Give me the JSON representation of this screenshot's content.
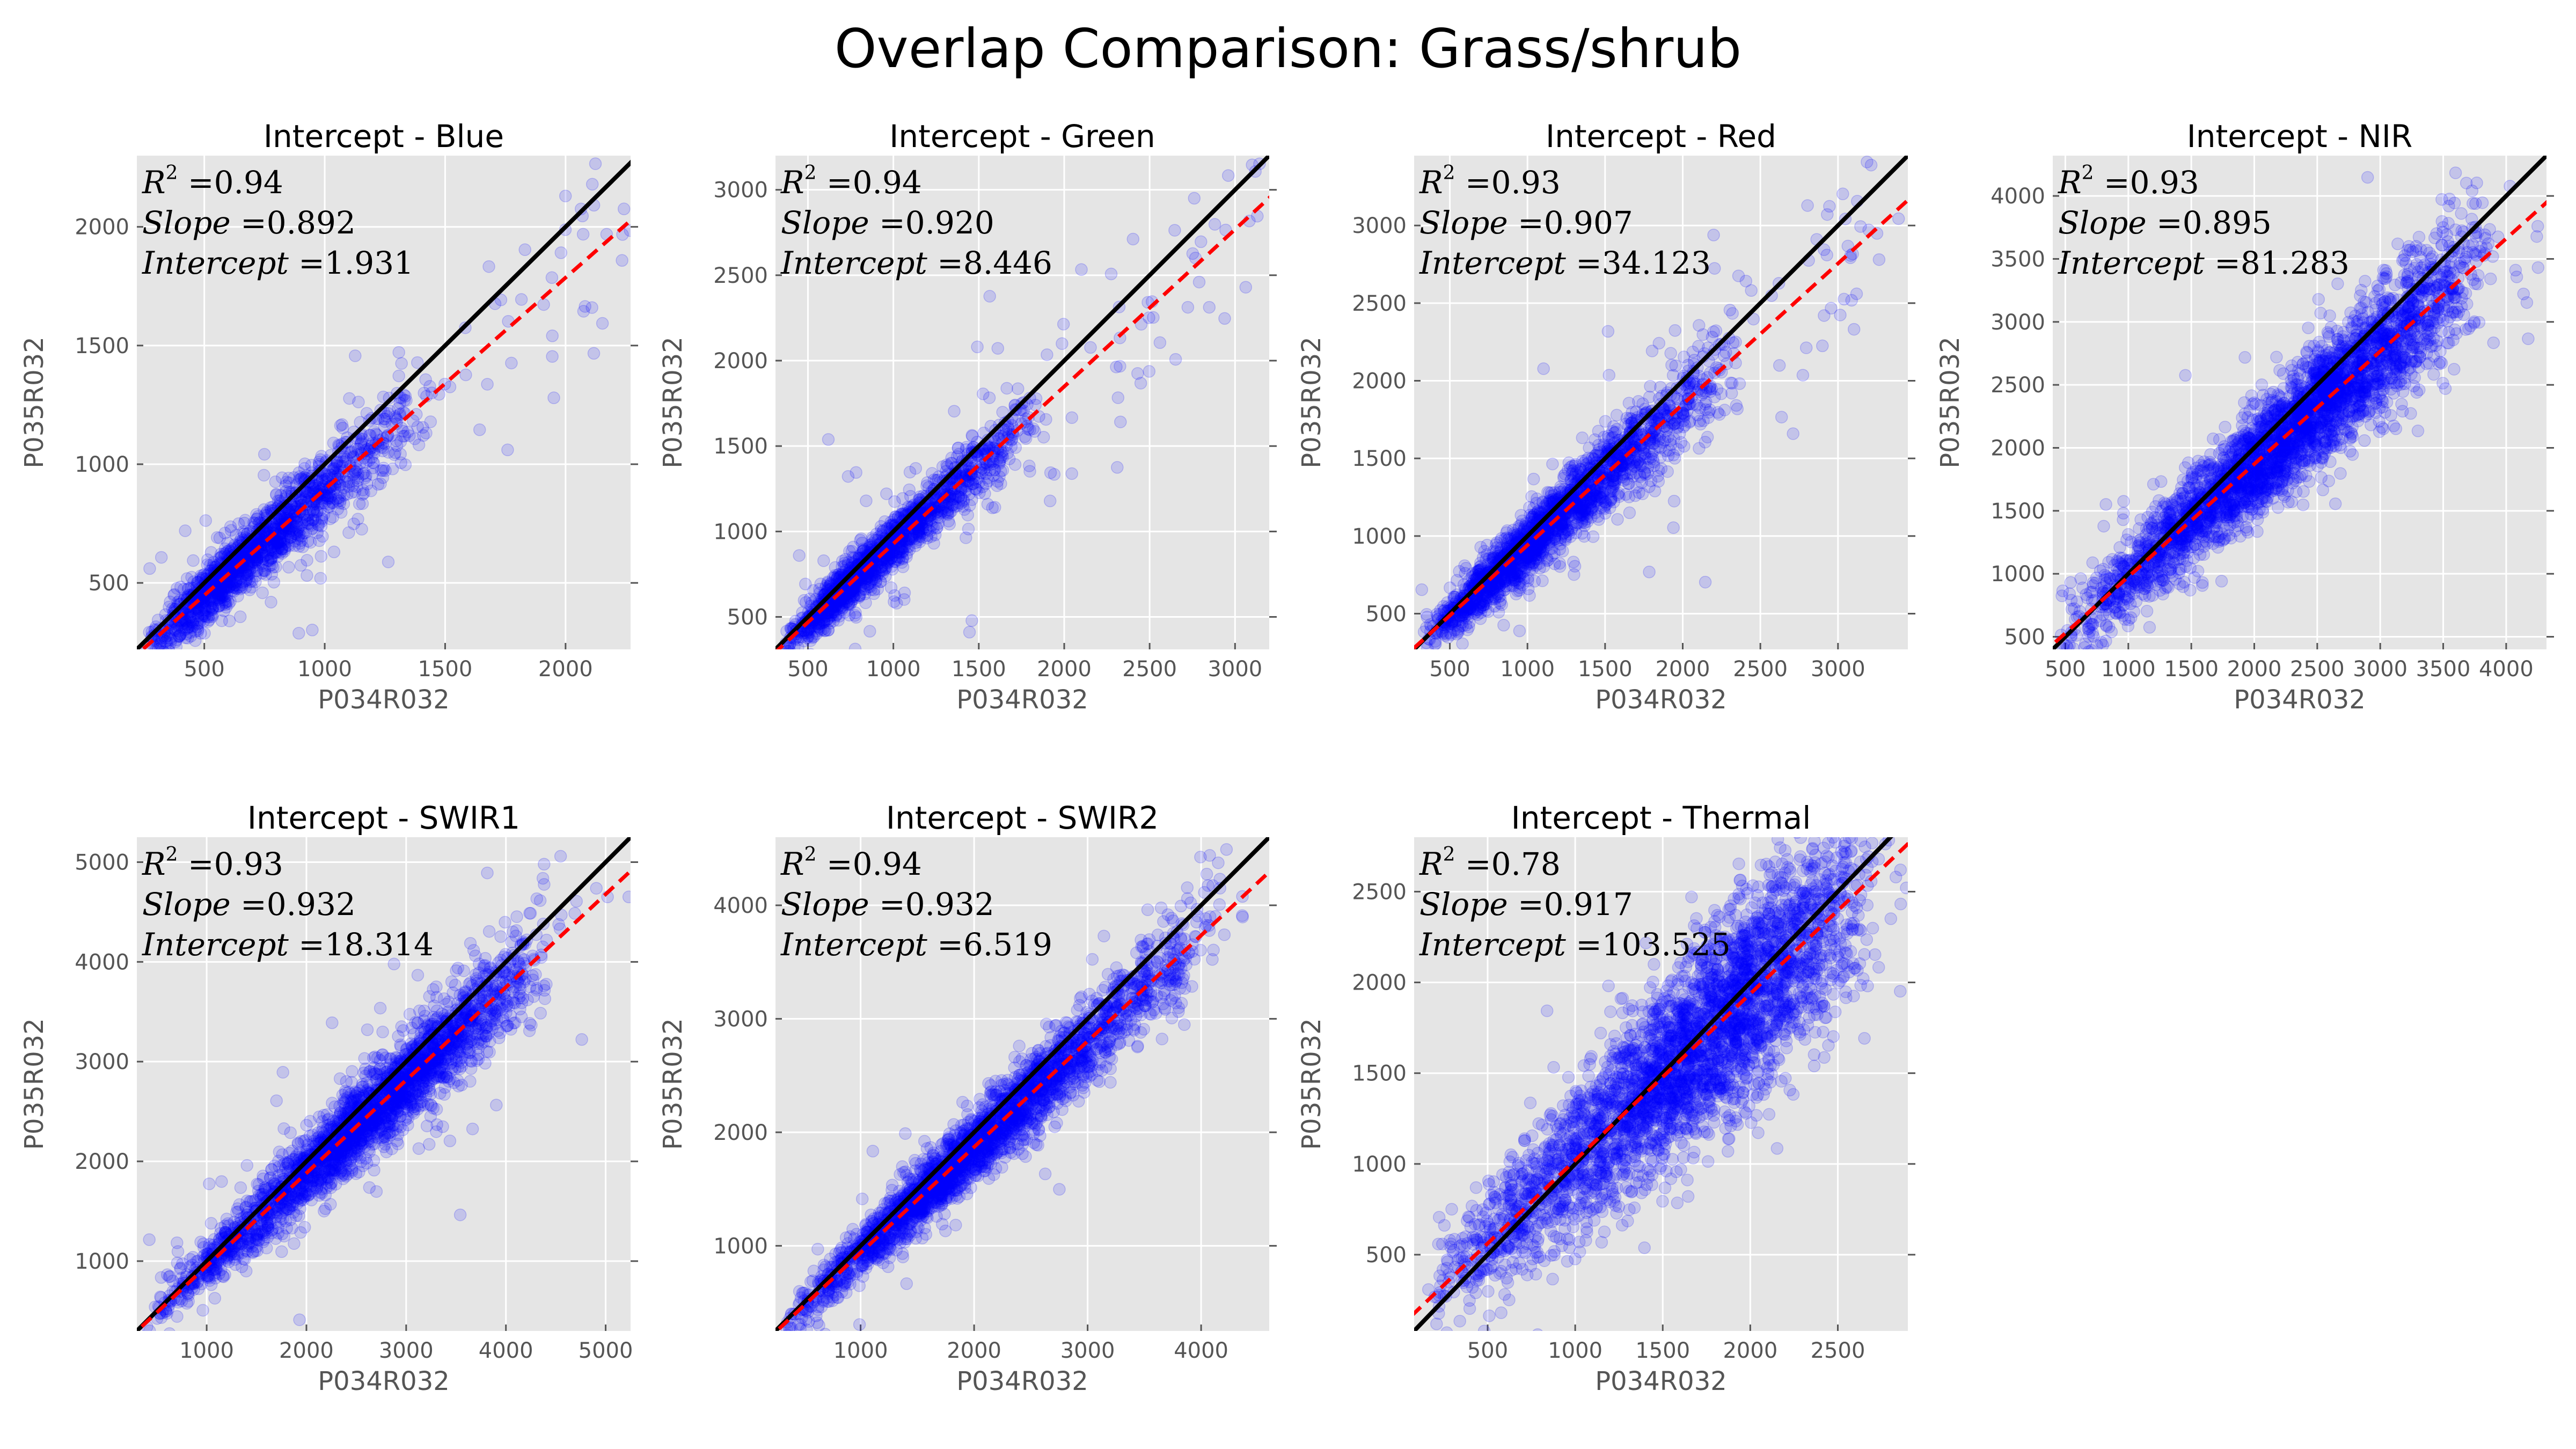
{
  "figure": {
    "title": "Overlap Comparison: Grass/shrub"
  },
  "colors": {
    "panel_bg": "#E5E5E5",
    "scatter": "#0000FF",
    "identity_line": "#000000",
    "fit_line": "#FF0000"
  },
  "chart_data": [
    {
      "type": "scatter",
      "title": "Intercept - Blue",
      "xlabel": "P034R032",
      "ylabel": "P035R032",
      "xlim": [
        220,
        2270
      ],
      "ylim": [
        220,
        2300
      ],
      "xticks": [
        500,
        1000,
        1500,
        2000
      ],
      "yticks": [
        500,
        1000,
        1500,
        2000
      ],
      "stats": {
        "r2": "0.94",
        "slope": "0.892",
        "intercept": "1.931"
      },
      "fit": {
        "slope": 0.892,
        "intercept": 1.931
      },
      "cloud": {
        "n": 1500,
        "xmin": 260,
        "xmode": 550,
        "xmax": 1450,
        "sd": 70,
        "outliers": 90
      },
      "grid": true,
      "identity_line": true,
      "fit_line_style": "dashed"
    },
    {
      "type": "scatter",
      "title": "Intercept - Green",
      "xlabel": "P034R032",
      "ylabel": "P035R032",
      "xlim": [
        310,
        3200
      ],
      "ylim": [
        310,
        3200
      ],
      "xticks": [
        500,
        1000,
        1500,
        2000,
        2500,
        3000
      ],
      "yticks": [
        500,
        1000,
        1500,
        2000,
        2500,
        3000
      ],
      "stats": {
        "r2": "0.94",
        "slope": "0.920",
        "intercept": "8.446"
      },
      "fit": {
        "slope": 0.92,
        "intercept": 8.446
      },
      "cloud": {
        "n": 1500,
        "xmin": 350,
        "xmode": 700,
        "xmax": 1900,
        "sd": 80,
        "outliers": 100
      },
      "grid": true,
      "identity_line": true,
      "fit_line_style": "dashed"
    },
    {
      "type": "scatter",
      "title": "Intercept - Red",
      "xlabel": "P034R032",
      "ylabel": "P035R032",
      "xlim": [
        270,
        3450
      ],
      "ylim": [
        270,
        3450
      ],
      "xticks": [
        500,
        1000,
        1500,
        2000,
        2500,
        3000
      ],
      "yticks": [
        500,
        1000,
        1500,
        2000,
        2500,
        3000
      ],
      "stats": {
        "r2": "0.93",
        "slope": "0.907",
        "intercept": "34.123"
      },
      "fit": {
        "slope": 0.907,
        "intercept": 34.123
      },
      "cloud": {
        "n": 2000,
        "xmin": 300,
        "xmode": 900,
        "xmax": 2400,
        "sd": 110,
        "outliers": 110
      },
      "grid": true,
      "identity_line": true,
      "fit_line_style": "dashed"
    },
    {
      "type": "scatter",
      "title": "Intercept - NIR",
      "xlabel": "P034R032",
      "ylabel": "P035R032",
      "xlim": [
        400,
        4320
      ],
      "ylim": [
        400,
        4320
      ],
      "xticks": [
        500,
        1000,
        1500,
        2000,
        2500,
        3000,
        3500,
        4000
      ],
      "yticks": [
        500,
        1000,
        1500,
        2000,
        2500,
        3000,
        3500,
        4000
      ],
      "stats": {
        "r2": "0.93",
        "slope": "0.895",
        "intercept": "81.283"
      },
      "fit": {
        "slope": 0.895,
        "intercept": 81.283
      },
      "cloud": {
        "n": 3200,
        "xmin": 450,
        "xmode": 2400,
        "xmax": 3900,
        "sd": 200,
        "outliers": 140
      },
      "grid": true,
      "identity_line": true,
      "fit_line_style": "dashed"
    },
    {
      "type": "scatter",
      "title": "Intercept - SWIR1",
      "xlabel": "P034R032",
      "ylabel": "P035R032",
      "xlim": [
        300,
        5250
      ],
      "ylim": [
        300,
        5250
      ],
      "xticks": [
        1000,
        2000,
        3000,
        4000,
        5000
      ],
      "yticks": [
        1000,
        2000,
        3000,
        4000,
        5000
      ],
      "stats": {
        "r2": "0.93",
        "slope": "0.932",
        "intercept": "18.314"
      },
      "fit": {
        "slope": 0.932,
        "intercept": 18.314
      },
      "cloud": {
        "n": 2600,
        "xmin": 350,
        "xmode": 2900,
        "xmax": 4500,
        "sd": 190,
        "outliers": 80
      },
      "grid": true,
      "identity_line": true,
      "fit_line_style": "dashed"
    },
    {
      "type": "scatter",
      "title": "Intercept - SWIR2",
      "xlabel": "P034R032",
      "ylabel": "P035R032",
      "xlim": [
        250,
        4600
      ],
      "ylim": [
        250,
        4600
      ],
      "xticks": [
        1000,
        2000,
        3000,
        4000
      ],
      "yticks": [
        1000,
        2000,
        3000,
        4000
      ],
      "stats": {
        "r2": "0.94",
        "slope": "0.932",
        "intercept": "6.519"
      },
      "fit": {
        "slope": 0.932,
        "intercept": 6.519
      },
      "cloud": {
        "n": 2600,
        "xmin": 280,
        "xmode": 1800,
        "xmax": 4300,
        "sd": 160,
        "outliers": 60
      },
      "grid": true,
      "identity_line": true,
      "fit_line_style": "dashed"
    },
    {
      "type": "scatter",
      "title": "Intercept - Thermal",
      "xlabel": "P034R032",
      "ylabel": "P035R032",
      "xlim": [
        80,
        2900
      ],
      "ylim": [
        80,
        2800
      ],
      "xticks": [
        500,
        1000,
        1500,
        2000,
        2500
      ],
      "yticks": [
        500,
        1000,
        1500,
        2000,
        2500
      ],
      "stats": {
        "r2": "0.78",
        "slope": "0.917",
        "intercept": "103.525"
      },
      "fit": {
        "slope": 0.917,
        "intercept": 103.525
      },
      "cloud": {
        "n": 3400,
        "xmin": 150,
        "xmode": 1900,
        "xmax": 2750,
        "sd": 230,
        "outliers": 150
      },
      "grid": true,
      "identity_line": true,
      "fit_line_style": "dashed"
    }
  ]
}
